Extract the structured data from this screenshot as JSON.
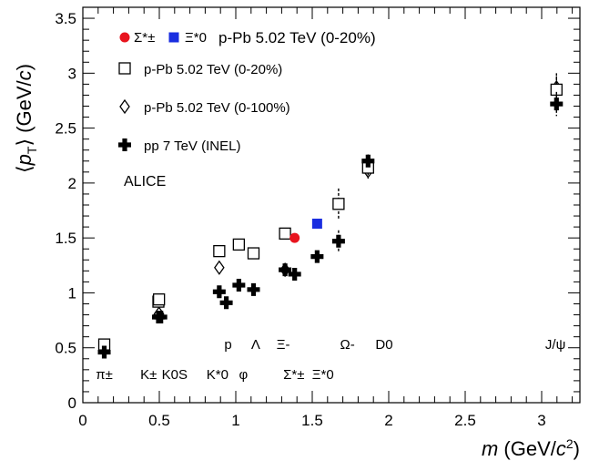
{
  "chart_data": {
    "type": "scatter",
    "xlabel": "m (GeV/c²)",
    "ylabel": "⟨pT⟩ (GeV/c)",
    "xlim": [
      0,
      3.25
    ],
    "ylim": [
      0,
      3.6
    ],
    "x_ticks": [
      {
        "v": 0,
        "label": "0"
      },
      {
        "v": 0.5,
        "label": "0.5"
      },
      {
        "v": 1,
        "label": "1"
      },
      {
        "v": 1.5,
        "label": "1.5"
      },
      {
        "v": 2,
        "label": "2"
      },
      {
        "v": 2.5,
        "label": "2.5"
      },
      {
        "v": 3,
        "label": "3"
      }
    ],
    "y_ticks": [
      {
        "v": 0,
        "label": "0"
      },
      {
        "v": 0.5,
        "label": "0.5"
      },
      {
        "v": 1,
        "label": "1"
      },
      {
        "v": 1.5,
        "label": "1.5"
      },
      {
        "v": 2,
        "label": "2"
      },
      {
        "v": 2.5,
        "label": "2.5"
      },
      {
        "v": 3,
        "label": "3"
      },
      {
        "v": 3.5,
        "label": "3.5"
      }
    ],
    "grid": false,
    "legend_position": "top-left",
    "annotation": "ALICE",
    "legend": {
      "combined_label": "p-Pb 5.02 TeV (0-20%)",
      "sigma_label": "Σ*±",
      "xi_label": "Ξ*0"
    },
    "series": [
      {
        "name": "Σ*±",
        "legend_group": "combined",
        "marker": "circle-filled",
        "color": "#e8141e",
        "points": [
          {
            "x": 1.385,
            "y": 1.5,
            "err": 0.03
          }
        ]
      },
      {
        "name": "Ξ*0",
        "legend_group": "combined",
        "marker": "square-filled",
        "color": "#1a2ee0",
        "points": [
          {
            "x": 1.532,
            "y": 1.63,
            "err": 0.04
          }
        ]
      },
      {
        "name": "p-Pb 5.02 TeV (0-20%)",
        "marker": "square-open",
        "color": "#000000",
        "points": [
          {
            "x": 0.14,
            "y": 0.53,
            "err": 0.03
          },
          {
            "x": 0.494,
            "y": 0.92,
            "err": 0.06
          },
          {
            "x": 0.498,
            "y": 0.94,
            "err": 0.05
          },
          {
            "x": 0.892,
            "y": 1.38,
            "err": 0.03
          },
          {
            "x": 1.02,
            "y": 1.44,
            "err": 0.03
          },
          {
            "x": 1.116,
            "y": 1.36,
            "err": 0.03
          },
          {
            "x": 1.322,
            "y": 1.54,
            "err": 0.05
          },
          {
            "x": 1.672,
            "y": 1.81,
            "err": 0.14
          },
          {
            "x": 1.865,
            "y": 2.14,
            "err": 0.08
          },
          {
            "x": 3.097,
            "y": 2.85,
            "err": 0.12
          }
        ]
      },
      {
        "name": "p-Pb 5.02 TeV (0-100%)",
        "marker": "diamond-open",
        "color": "#000000",
        "points": [
          {
            "x": 0.14,
            "y": 0.49,
            "err": 0.02
          },
          {
            "x": 0.494,
            "y": 0.8,
            "err": 0.03
          },
          {
            "x": 0.498,
            "y": 0.81,
            "err": 0.03
          },
          {
            "x": 0.892,
            "y": 1.23,
            "err": 0.04
          },
          {
            "x": 1.322,
            "y": 1.21,
            "err": 0.04
          },
          {
            "x": 1.865,
            "y": 2.11,
            "err": 0.08
          },
          {
            "x": 3.097,
            "y": 2.87,
            "err": 0.13
          }
        ]
      },
      {
        "name": "pp 7 TeV (INEL)",
        "marker": "cross-filled",
        "color": "#000000",
        "points": [
          {
            "x": 0.14,
            "y": 0.46,
            "err": 0.02
          },
          {
            "x": 0.494,
            "y": 0.78,
            "err": 0.03
          },
          {
            "x": 0.51,
            "y": 0.78,
            "err": 0.03
          },
          {
            "x": 0.892,
            "y": 1.01,
            "err": 0.03
          },
          {
            "x": 0.938,
            "y": 0.91,
            "err": 0.03
          },
          {
            "x": 1.02,
            "y": 1.07,
            "err": 0.03
          },
          {
            "x": 1.116,
            "y": 1.03,
            "err": 0.03
          },
          {
            "x": 1.322,
            "y": 1.21,
            "err": 0.04
          },
          {
            "x": 1.385,
            "y": 1.17,
            "err": 0.04
          },
          {
            "x": 1.532,
            "y": 1.33,
            "err": 0.04
          },
          {
            "x": 1.672,
            "y": 1.47,
            "err": 0.1
          },
          {
            "x": 1.865,
            "y": 2.2,
            "err": 0.06
          },
          {
            "x": 3.097,
            "y": 2.72,
            "err": 0.11
          }
        ]
      }
    ],
    "particle_labels": [
      {
        "text": "π±",
        "x": 0.14,
        "row": 2
      },
      {
        "text": "K±",
        "x": 0.43,
        "row": 2
      },
      {
        "text": "K0S",
        "x": 0.6,
        "row": 2
      },
      {
        "text": "K*0",
        "x": 0.88,
        "row": 2
      },
      {
        "text": "φ",
        "x": 1.05,
        "row": 2
      },
      {
        "text": "Σ*±",
        "x": 1.38,
        "row": 2
      },
      {
        "text": "Ξ*0",
        "x": 1.57,
        "row": 2
      },
      {
        "text": "p",
        "x": 0.95,
        "row": 1
      },
      {
        "text": "Λ",
        "x": 1.13,
        "row": 1
      },
      {
        "text": "Ξ-",
        "x": 1.31,
        "row": 1
      },
      {
        "text": "Ω-",
        "x": 1.73,
        "row": 1
      },
      {
        "text": "D0",
        "x": 1.97,
        "row": 1
      },
      {
        "text": "J/ψ",
        "x": 3.09,
        "row": 1
      }
    ]
  }
}
